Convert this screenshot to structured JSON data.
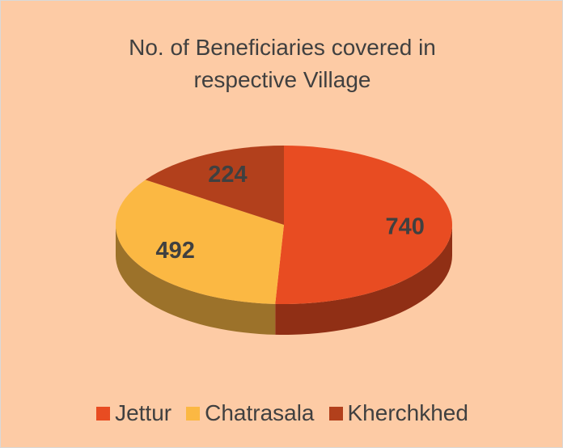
{
  "chart_data": {
    "type": "pie",
    "title": "No. of Beneficiaries covered in respective Village",
    "categories": [
      "Jettur",
      "Chatrasala",
      "Kherchkhed"
    ],
    "values": [
      740,
      492,
      224
    ],
    "colors": [
      "#e84c22",
      "#fbb843",
      "#b2401c"
    ],
    "legend": "bottom"
  }
}
